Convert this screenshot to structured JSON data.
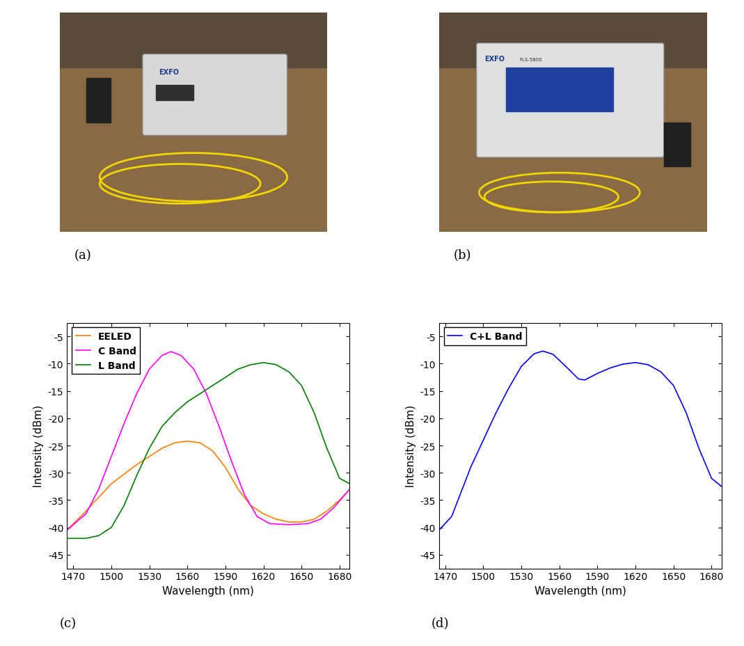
{
  "photos": [
    {
      "label": "(a)",
      "texts": [
        "EXFO"
      ]
    },
    {
      "label": "(b)",
      "texts": [
        "EXFO",
        "FLS-5800"
      ]
    }
  ],
  "chart_data": [
    {
      "type": "line",
      "label": "(c)",
      "x_label": "Wavelength (nm)",
      "y_label": "Intensity (dBm)",
      "xlim": [
        1465,
        1688
      ],
      "ylim": [
        -47.5,
        -2.5
      ],
      "xticks": [
        1470,
        1500,
        1530,
        1560,
        1590,
        1620,
        1650,
        1680
      ],
      "yticks": [
        -45,
        -40,
        -35,
        -30,
        -25,
        -20,
        -15,
        -10,
        -5
      ],
      "legend": "upper left",
      "series": [
        {
          "name": "EELED",
          "color": "#ff8000",
          "x": [
            1465,
            1480,
            1500,
            1520,
            1540,
            1550,
            1560,
            1570,
            1580,
            1590,
            1600,
            1610,
            1620,
            1630,
            1640,
            1650,
            1660,
            1670,
            1680,
            1688
          ],
          "values": [
            -40.5,
            -37,
            -32,
            -28.5,
            -25.5,
            -24.5,
            -24.2,
            -24.5,
            -26,
            -29,
            -33,
            -36,
            -37.5,
            -38.5,
            -39,
            -39,
            -38.5,
            -37,
            -35,
            -33
          ]
        },
        {
          "name": "C Band",
          "color": "#ff00ff",
          "x": [
            1465,
            1480,
            1490,
            1500,
            1510,
            1520,
            1530,
            1540,
            1547,
            1555,
            1565,
            1575,
            1585,
            1595,
            1605,
            1615,
            1625,
            1640,
            1655,
            1665,
            1675,
            1688
          ],
          "values": [
            -40.5,
            -37.5,
            -33,
            -27,
            -21,
            -15.5,
            -11,
            -8.5,
            -7.8,
            -8.5,
            -11,
            -15.5,
            -21.5,
            -28,
            -34,
            -38,
            -39.3,
            -39.5,
            -39.3,
            -38.5,
            -36.5,
            -33
          ]
        },
        {
          "name": "L Band",
          "color": "#008000",
          "x": [
            1465,
            1480,
            1490,
            1500,
            1510,
            1520,
            1530,
            1540,
            1550,
            1560,
            1570,
            1580,
            1590,
            1600,
            1610,
            1620,
            1630,
            1640,
            1650,
            1660,
            1670,
            1680,
            1688
          ],
          "values": [
            -42,
            -42,
            -41.5,
            -40,
            -36,
            -30.5,
            -25.5,
            -21.5,
            -19,
            -17,
            -15.5,
            -14,
            -12.5,
            -11,
            -10.2,
            -9.8,
            -10.2,
            -11.5,
            -14,
            -19,
            -25.5,
            -31,
            -32
          ]
        }
      ]
    },
    {
      "type": "line",
      "label": "(d)",
      "x_label": "Wavelength (nm)",
      "y_label": "Intensity (dBm)",
      "xlim": [
        1465,
        1688
      ],
      "ylim": [
        -47.5,
        -2.5
      ],
      "xticks": [
        1470,
        1500,
        1530,
        1560,
        1590,
        1620,
        1650,
        1680
      ],
      "yticks": [
        -45,
        -40,
        -35,
        -30,
        -25,
        -20,
        -15,
        -10,
        -5
      ],
      "legend": "upper left",
      "series": [
        {
          "name": "C+L Band",
          "color": "#0000ff",
          "x": [
            1465,
            1475,
            1480,
            1490,
            1500,
            1510,
            1520,
            1530,
            1540,
            1547,
            1555,
            1565,
            1575,
            1580,
            1590,
            1600,
            1610,
            1620,
            1630,
            1640,
            1650,
            1660,
            1670,
            1680,
            1688
          ],
          "values": [
            -40.5,
            -38,
            -35,
            -29,
            -24,
            -19,
            -14.5,
            -10.5,
            -8.2,
            -7.7,
            -8.3,
            -10.5,
            -12.8,
            -13,
            -11.8,
            -10.8,
            -10.1,
            -9.8,
            -10.2,
            -11.5,
            -14,
            -19,
            -25.5,
            -31,
            -32.5
          ]
        }
      ]
    }
  ]
}
